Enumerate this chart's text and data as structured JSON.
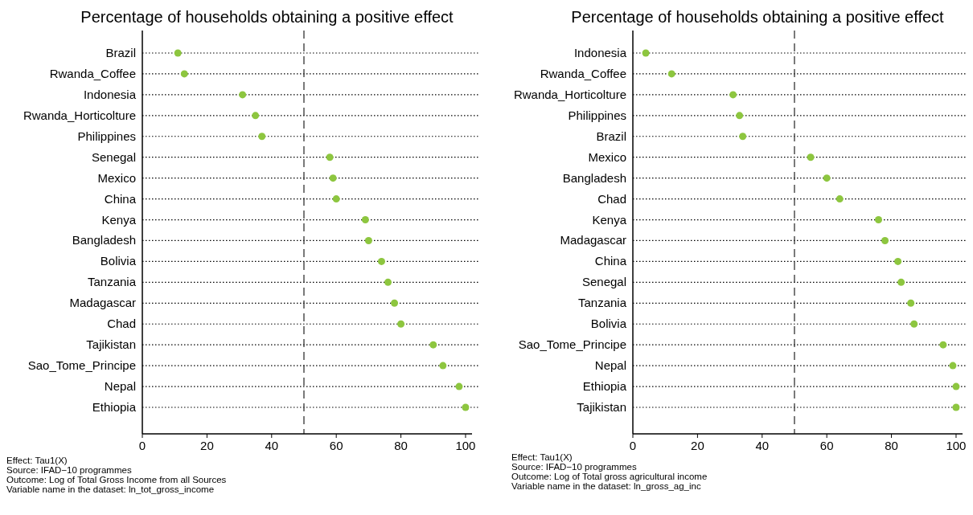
{
  "chart_data": [
    {
      "type": "scatter",
      "orientation": "horizontal",
      "title": "Percentage of households obtaining a positive effect",
      "categories": [
        "Brazil",
        "Rwanda_Coffee",
        "Indonesia",
        "Rwanda_Horticolture",
        "Philippines",
        "Senegal",
        "Mexico",
        "China",
        "Kenya",
        "Bangladesh",
        "Bolivia",
        "Tanzania",
        "Madagascar",
        "Chad",
        "Tajikistan",
        "Sao_Tome_Principe",
        "Nepal",
        "Ethiopia"
      ],
      "values": [
        11,
        13,
        31,
        35,
        37,
        58,
        59,
        60,
        69,
        70,
        74,
        76,
        78,
        80,
        90,
        93,
        98,
        100
      ],
      "color": "#8dc63f",
      "marker": "circle",
      "grid": "y",
      "xlim": [
        0,
        102
      ],
      "xticks": [
        0,
        20,
        40,
        60,
        80,
        100
      ],
      "ref_lines": [
        {
          "axis": "x",
          "value": 50,
          "line_style": "dashed"
        }
      ],
      "annotations": [
        "Effect: Tau1(X)",
        "Source: IFAD−10 programmes",
        "Outcome: Log of Total Gross Income from all Sources",
        "Variable name in the dataset: ln_tot_gross_income"
      ]
    },
    {
      "type": "scatter",
      "orientation": "horizontal",
      "title": "Percentage of households obtaining a positive effect",
      "categories": [
        "Indonesia",
        "Rwanda_Coffee",
        "Rwanda_Horticolture",
        "Philippines",
        "Brazil",
        "Mexico",
        "Bangladesh",
        "Chad",
        "Kenya",
        "Madagascar",
        "China",
        "Senegal",
        "Tanzania",
        "Bolivia",
        "Sao_Tome_Principe",
        "Nepal",
        "Ethiopia",
        "Tajikistan"
      ],
      "values": [
        4,
        12,
        31,
        33,
        34,
        55,
        60,
        64,
        76,
        78,
        82,
        83,
        86,
        87,
        96,
        99,
        100,
        100
      ],
      "color": "#8dc63f",
      "marker": "circle",
      "grid": "y",
      "xlim": [
        0,
        102
      ],
      "xticks": [
        0,
        20,
        40,
        60,
        80,
        100
      ],
      "ref_lines": [
        {
          "axis": "x",
          "value": 50,
          "line_style": "dashed"
        }
      ],
      "annotations": [
        "Effect: Tau1(X)",
        "Source: IFAD−10 programmes",
        "Outcome: Log of Total gross agricultural income",
        "Variable name in the dataset: ln_gross_ag_inc"
      ]
    }
  ]
}
